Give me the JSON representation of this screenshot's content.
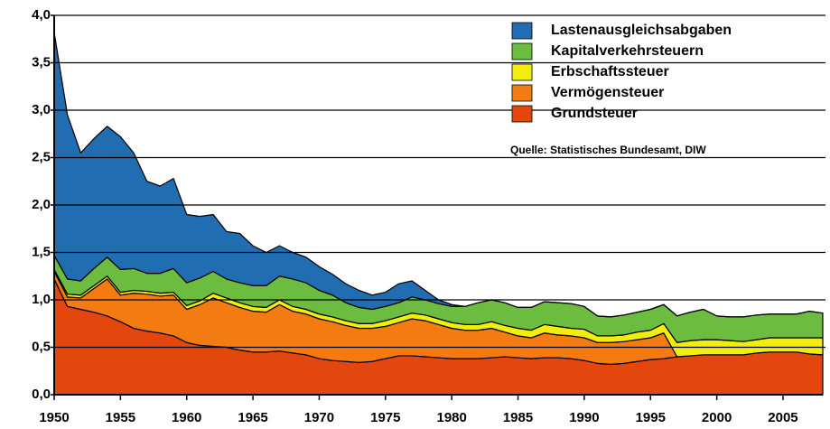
{
  "chart_data": {
    "type": "stacked_area",
    "source": "Quelle: Statistisches Bundesamt, DIW",
    "x": [
      1950,
      1951,
      1952,
      1953,
      1954,
      1955,
      1956,
      1957,
      1958,
      1959,
      1960,
      1961,
      1962,
      1963,
      1964,
      1965,
      1966,
      1967,
      1968,
      1969,
      1970,
      1971,
      1972,
      1973,
      1974,
      1975,
      1976,
      1977,
      1978,
      1979,
      1980,
      1981,
      1982,
      1983,
      1984,
      1985,
      1986,
      1987,
      1988,
      1989,
      1990,
      1991,
      1992,
      1993,
      1994,
      1995,
      1996,
      1997,
      1998,
      1999,
      2000,
      2001,
      2002,
      2003,
      2004,
      2005,
      2006,
      2007,
      2008
    ],
    "series": [
      {
        "name": "Grundsteuer",
        "color": "#e4470e",
        "values": [
          1.22,
          0.93,
          0.9,
          0.87,
          0.83,
          0.77,
          0.7,
          0.67,
          0.65,
          0.62,
          0.55,
          0.52,
          0.51,
          0.5,
          0.47,
          0.45,
          0.45,
          0.46,
          0.44,
          0.42,
          0.38,
          0.36,
          0.35,
          0.34,
          0.35,
          0.38,
          0.41,
          0.41,
          0.4,
          0.39,
          0.38,
          0.38,
          0.38,
          0.39,
          0.4,
          0.39,
          0.38,
          0.39,
          0.39,
          0.38,
          0.36,
          0.33,
          0.32,
          0.33,
          0.35,
          0.37,
          0.38,
          0.4,
          0.41,
          0.42,
          0.42,
          0.42,
          0.42,
          0.44,
          0.45,
          0.45,
          0.45,
          0.43,
          0.42
        ]
      },
      {
        "name": "Vermögensteuer",
        "color": "#f47b12",
        "values": [
          0.08,
          0.1,
          0.12,
          0.25,
          0.39,
          0.28,
          0.37,
          0.39,
          0.39,
          0.43,
          0.35,
          0.43,
          0.51,
          0.47,
          0.45,
          0.43,
          0.42,
          0.49,
          0.44,
          0.43,
          0.42,
          0.41,
          0.38,
          0.36,
          0.35,
          0.34,
          0.35,
          0.39,
          0.38,
          0.35,
          0.32,
          0.3,
          0.3,
          0.31,
          0.26,
          0.23,
          0.22,
          0.26,
          0.24,
          0.24,
          0.24,
          0.22,
          0.23,
          0.23,
          0.23,
          0.23,
          0.27,
          0,
          0,
          0,
          0,
          0,
          0,
          0,
          0,
          0,
          0,
          0,
          0
        ]
      },
      {
        "name": "Erbschaftssteuer",
        "color": "#f2ee0b",
        "values": [
          0.02,
          0.03,
          0.03,
          0.03,
          0.03,
          0.03,
          0.03,
          0.03,
          0.03,
          0.03,
          0.04,
          0.04,
          0.05,
          0.05,
          0.05,
          0.05,
          0.05,
          0.05,
          0.05,
          0.05,
          0.05,
          0.05,
          0.05,
          0.05,
          0.05,
          0.06,
          0.06,
          0.06,
          0.06,
          0.06,
          0.06,
          0.06,
          0.06,
          0.07,
          0.07,
          0.08,
          0.08,
          0.09,
          0.09,
          0.08,
          0.09,
          0.07,
          0.07,
          0.07,
          0.08,
          0.08,
          0.1,
          0.15,
          0.16,
          0.16,
          0.16,
          0.15,
          0.14,
          0.14,
          0.15,
          0.15,
          0.15,
          0.17,
          0.18
        ]
      },
      {
        "name": "Kapitalverkehrsteuern",
        "color": "#6cbd3f",
        "values": [
          0.15,
          0.16,
          0.15,
          0.18,
          0.2,
          0.24,
          0.23,
          0.19,
          0.21,
          0.25,
          0.24,
          0.24,
          0.23,
          0.2,
          0.21,
          0.22,
          0.23,
          0.25,
          0.29,
          0.28,
          0.25,
          0.23,
          0.19,
          0.17,
          0.15,
          0.15,
          0.15,
          0.17,
          0.16,
          0.16,
          0.17,
          0.19,
          0.23,
          0.23,
          0.24,
          0.22,
          0.24,
          0.24,
          0.25,
          0.26,
          0.24,
          0.21,
          0.2,
          0.21,
          0.21,
          0.22,
          0.2,
          0.28,
          0.3,
          0.32,
          0.25,
          0.25,
          0.26,
          0.26,
          0.25,
          0.25,
          0.25,
          0.28,
          0.26
        ]
      },
      {
        "name": "Lastenausgleichsabgaben",
        "color": "#206db1",
        "values": [
          2.35,
          1.73,
          1.35,
          1.37,
          1.38,
          1.4,
          1.22,
          0.97,
          0.92,
          0.95,
          0.72,
          0.65,
          0.6,
          0.5,
          0.52,
          0.42,
          0.35,
          0.32,
          0.28,
          0.27,
          0.25,
          0.22,
          0.2,
          0.18,
          0.15,
          0.15,
          0.2,
          0.17,
          0.1,
          0.04,
          0.02,
          0,
          0,
          0,
          0,
          0,
          0,
          0,
          0,
          0,
          0,
          0,
          0,
          0,
          0,
          0,
          0,
          0,
          0,
          0,
          0,
          0,
          0,
          0,
          0,
          0,
          0,
          0,
          0
        ]
      }
    ],
    "xlim": [
      1950,
      2008
    ],
    "xticks": [
      1950,
      1955,
      1960,
      1965,
      1970,
      1975,
      1980,
      1985,
      1990,
      1995,
      2000,
      2005
    ],
    "ylim": [
      0,
      4
    ],
    "yticks": [
      {
        "value": 0,
        "label": "0,0"
      },
      {
        "value": 0.5,
        "label": "0,5"
      },
      {
        "value": 1,
        "label": "1,0"
      },
      {
        "value": 1.5,
        "label": "1,5"
      },
      {
        "value": 2,
        "label": "2,0"
      },
      {
        "value": 2.5,
        "label": "2,5"
      },
      {
        "value": 3,
        "label": "3,0"
      },
      {
        "value": 3.5,
        "label": "3,5"
      },
      {
        "value": 4,
        "label": "4,0"
      }
    ],
    "grid": true,
    "legend": "upper right"
  }
}
